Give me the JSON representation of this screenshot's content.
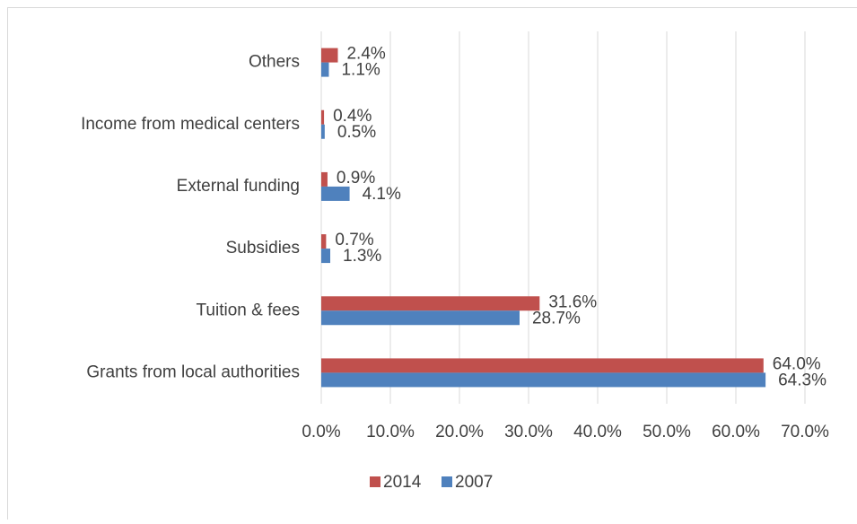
{
  "chart_data": {
    "type": "barh",
    "categories": [
      "Others",
      "Income from medical centers",
      "External funding",
      "Subsidies",
      "Tuition & fees",
      "Grants from local authorities"
    ],
    "series": [
      {
        "name": "2014",
        "color": "#c0504d",
        "values": [
          2.4,
          0.4,
          0.9,
          0.7,
          31.6,
          64.0
        ],
        "value_labels": [
          "2.4%",
          "0.4%",
          "0.9%",
          "0.7%",
          "31.6%",
          "64.0%"
        ]
      },
      {
        "name": "2007",
        "color": "#4f81bd",
        "values": [
          1.1,
          0.5,
          4.1,
          1.3,
          28.7,
          64.3
        ],
        "value_labels": [
          "1.1%",
          "0.5%",
          "4.1%",
          "1.3%",
          "28.7%",
          "64.3%"
        ]
      }
    ],
    "xlim": [
      0,
      70
    ],
    "xticks": [
      {
        "value": 0,
        "label": "0.0%"
      },
      {
        "value": 10,
        "label": "10.0%"
      },
      {
        "value": 20,
        "label": "20.0%"
      },
      {
        "value": 30,
        "label": "30.0%"
      },
      {
        "value": 40,
        "label": "40.0%"
      },
      {
        "value": 50,
        "label": "50.0%"
      },
      {
        "value": 60,
        "label": "60.0%"
      },
      {
        "value": 70,
        "label": "70.0%"
      }
    ],
    "grid": true,
    "legend": "bottom"
  }
}
